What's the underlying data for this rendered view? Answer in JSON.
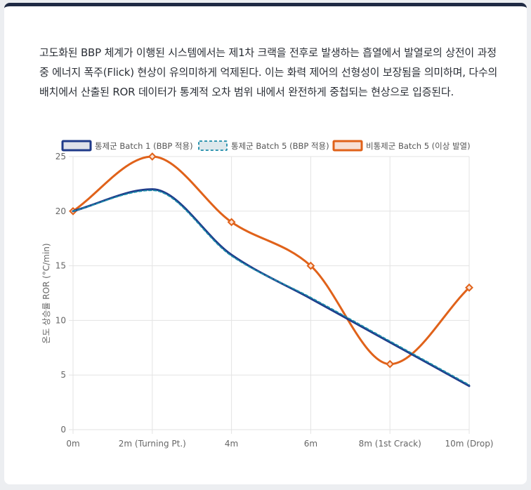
{
  "paragraph": "고도화된 BBP 체계가 이행된 시스템에서는 제1차 크랙을 전후로 발생하는 흡열에서 발열로의 상전이 과정 중 에너지 폭주(Flick) 현상이 유의미하게 억제된다. 이는 화력 제어의 선형성이 보장됨을 의미하며, 다수의 배치에서 산출된 ROR 데이터가 통계적 오차 범위 내에서 완전하게 중첩되는 현상으로 입증된다.",
  "chart_data": {
    "type": "line",
    "categories": [
      "0m",
      "2m (Turning Pt.)",
      "4m",
      "6m",
      "8m (1st Crack)",
      "10m (Drop)"
    ],
    "ylabel": "온도 상승률 ROR (°C/min)",
    "ylim": [
      0,
      25
    ],
    "yticks": [
      "0",
      "5",
      "10",
      "15",
      "20",
      "25"
    ],
    "grid": true,
    "legend_position": "top",
    "series": [
      {
        "name": "통제군 Batch 1 (BBP 적용)",
        "values": [
          20,
          22,
          16,
          12,
          8,
          4
        ],
        "color": "#1f3a8a",
        "style": "solid",
        "markers": false
      },
      {
        "name": "통제군 Batch 5 (BBP 적용)",
        "values": [
          20,
          21.9,
          15.9,
          12.1,
          8.1,
          4.1
        ],
        "color": "#1a8aa8",
        "style": "dashed",
        "markers": false
      },
      {
        "name": "비통제군 Batch 5 (이상 발열)",
        "values": [
          20,
          25,
          19,
          15,
          6,
          13
        ],
        "color": "#e0621a",
        "style": "solid",
        "markers": true
      }
    ]
  }
}
